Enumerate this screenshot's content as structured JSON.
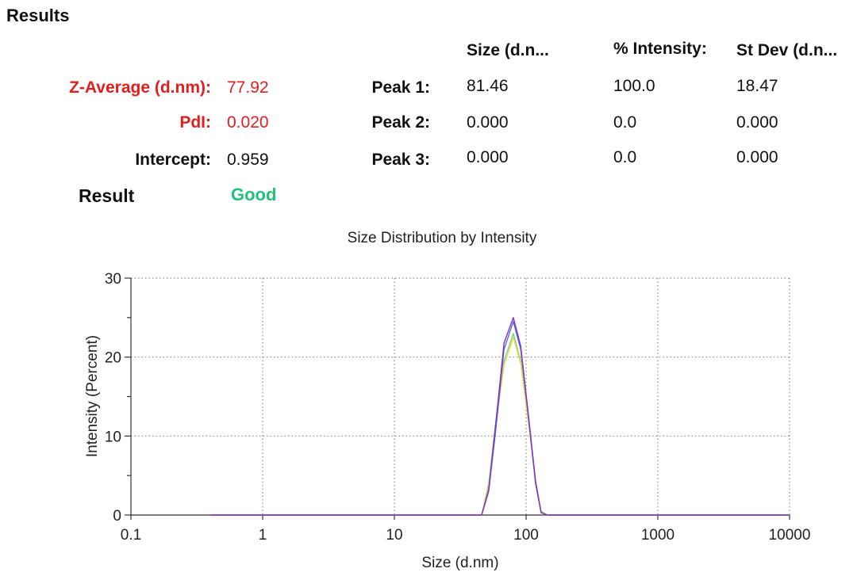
{
  "section_title": "Results",
  "columns": {
    "size": "Size (d.n...",
    "intensity": "% Intensity:",
    "stdev": "St Dev (d.n..."
  },
  "summary": {
    "zavg_label": "Z-Average (d.nm):",
    "zavg_value": "77.92",
    "pdi_label": "PdI:",
    "pdi_value": "0.020",
    "intercept_label": "Intercept:",
    "intercept_value": "0.959",
    "result_label": "Result",
    "result_value": "Good"
  },
  "peaks": [
    {
      "label": "Peak 1:",
      "size": "81.46",
      "intensity": "100.0",
      "stdev": "18.47"
    },
    {
      "label": "Peak 2:",
      "size": "0.000",
      "intensity": "0.0",
      "stdev": "0.000"
    },
    {
      "label": "Peak 3:",
      "size": "0.000",
      "intensity": "0.0",
      "stdev": "0.000"
    }
  ],
  "colors": {
    "title": "#108a10",
    "highlight": "#e02020",
    "good": "#22c07a"
  },
  "chart_data": {
    "type": "line",
    "title": "Size Distribution by Intensity",
    "xlabel": "Size (d.nm)",
    "ylabel": "Intensity (Percent)",
    "xscale": "log",
    "xlim": [
      0.1,
      10000
    ],
    "ylim": [
      0,
      30
    ],
    "xticks": [
      0.1,
      1,
      10,
      100,
      1000,
      10000
    ],
    "xtick_labels": [
      "0.1",
      "1",
      "10",
      "100",
      "1000",
      "10000"
    ],
    "yticks": [
      0,
      10,
      20,
      30
    ],
    "ytick_labels": [
      "0",
      "10",
      "20",
      "30"
    ],
    "grid": true,
    "series": [
      {
        "color": "#7fd27f",
        "x": [
          0.4,
          40,
          46,
          52,
          59,
          68,
          80,
          91,
          104,
          118,
          130,
          145,
          10000
        ],
        "y": [
          0,
          0,
          0,
          4.0,
          12.0,
          19.5,
          23.0,
          19.5,
          12.0,
          4.5,
          0.5,
          0,
          0
        ]
      },
      {
        "color": "#e8d84a",
        "x": [
          0.4,
          40,
          46,
          52,
          59,
          68,
          80,
          91,
          104,
          118,
          130,
          145,
          10000
        ],
        "y": [
          0,
          0,
          0,
          3.6,
          11.5,
          19.0,
          22.5,
          19.2,
          11.8,
          4.3,
          0.4,
          0,
          0
        ]
      },
      {
        "color": "#4a6fd0",
        "x": [
          0.4,
          40,
          46,
          52,
          59,
          68,
          80,
          91,
          104,
          118,
          130,
          145,
          10000
        ],
        "y": [
          0,
          0,
          0,
          3.0,
          11.0,
          21.0,
          24.5,
          21.0,
          12.5,
          4.0,
          0.3,
          0,
          0
        ]
      },
      {
        "color": "#8a30c0",
        "x": [
          0.4,
          40,
          46,
          52,
          59,
          68,
          80,
          91,
          104,
          118,
          130,
          145,
          10000
        ],
        "y": [
          0,
          0,
          0,
          3.2,
          11.8,
          21.8,
          25.0,
          21.4,
          12.8,
          4.2,
          0.3,
          0,
          0
        ]
      }
    ]
  }
}
